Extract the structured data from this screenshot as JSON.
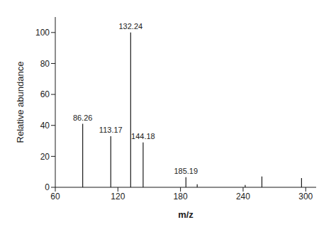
{
  "chart_data": {
    "type": "stem",
    "x": [
      86.26,
      113.17,
      132.24,
      144.18,
      185.19,
      196.0,
      242.0,
      258.0,
      296.0
    ],
    "values": [
      41.0,
      33.0,
      100.0,
      29.0,
      6.5,
      2.0,
      1.5,
      7.0,
      6.0
    ],
    "annotations": [
      {
        "x": 86.26,
        "y": 41.0,
        "text": "86.26"
      },
      {
        "x": 113.17,
        "y": 33.0,
        "text": "113.17"
      },
      {
        "x": 132.24,
        "y": 100.0,
        "text": "132.24"
      },
      {
        "x": 144.18,
        "y": 29.0,
        "text": "144.18"
      },
      {
        "x": 185.19,
        "y": 6.5,
        "text": "185.19"
      }
    ],
    "xlabel": "m/z",
    "ylabel": "Relative abundance",
    "xlim": [
      60,
      310
    ],
    "ylim": [
      0,
      110
    ],
    "xticks": [
      60,
      120,
      180,
      240,
      300
    ],
    "yticks": [
      0,
      20,
      40,
      60,
      80,
      100
    ],
    "color": "#1a1a1a",
    "grid": false
  }
}
